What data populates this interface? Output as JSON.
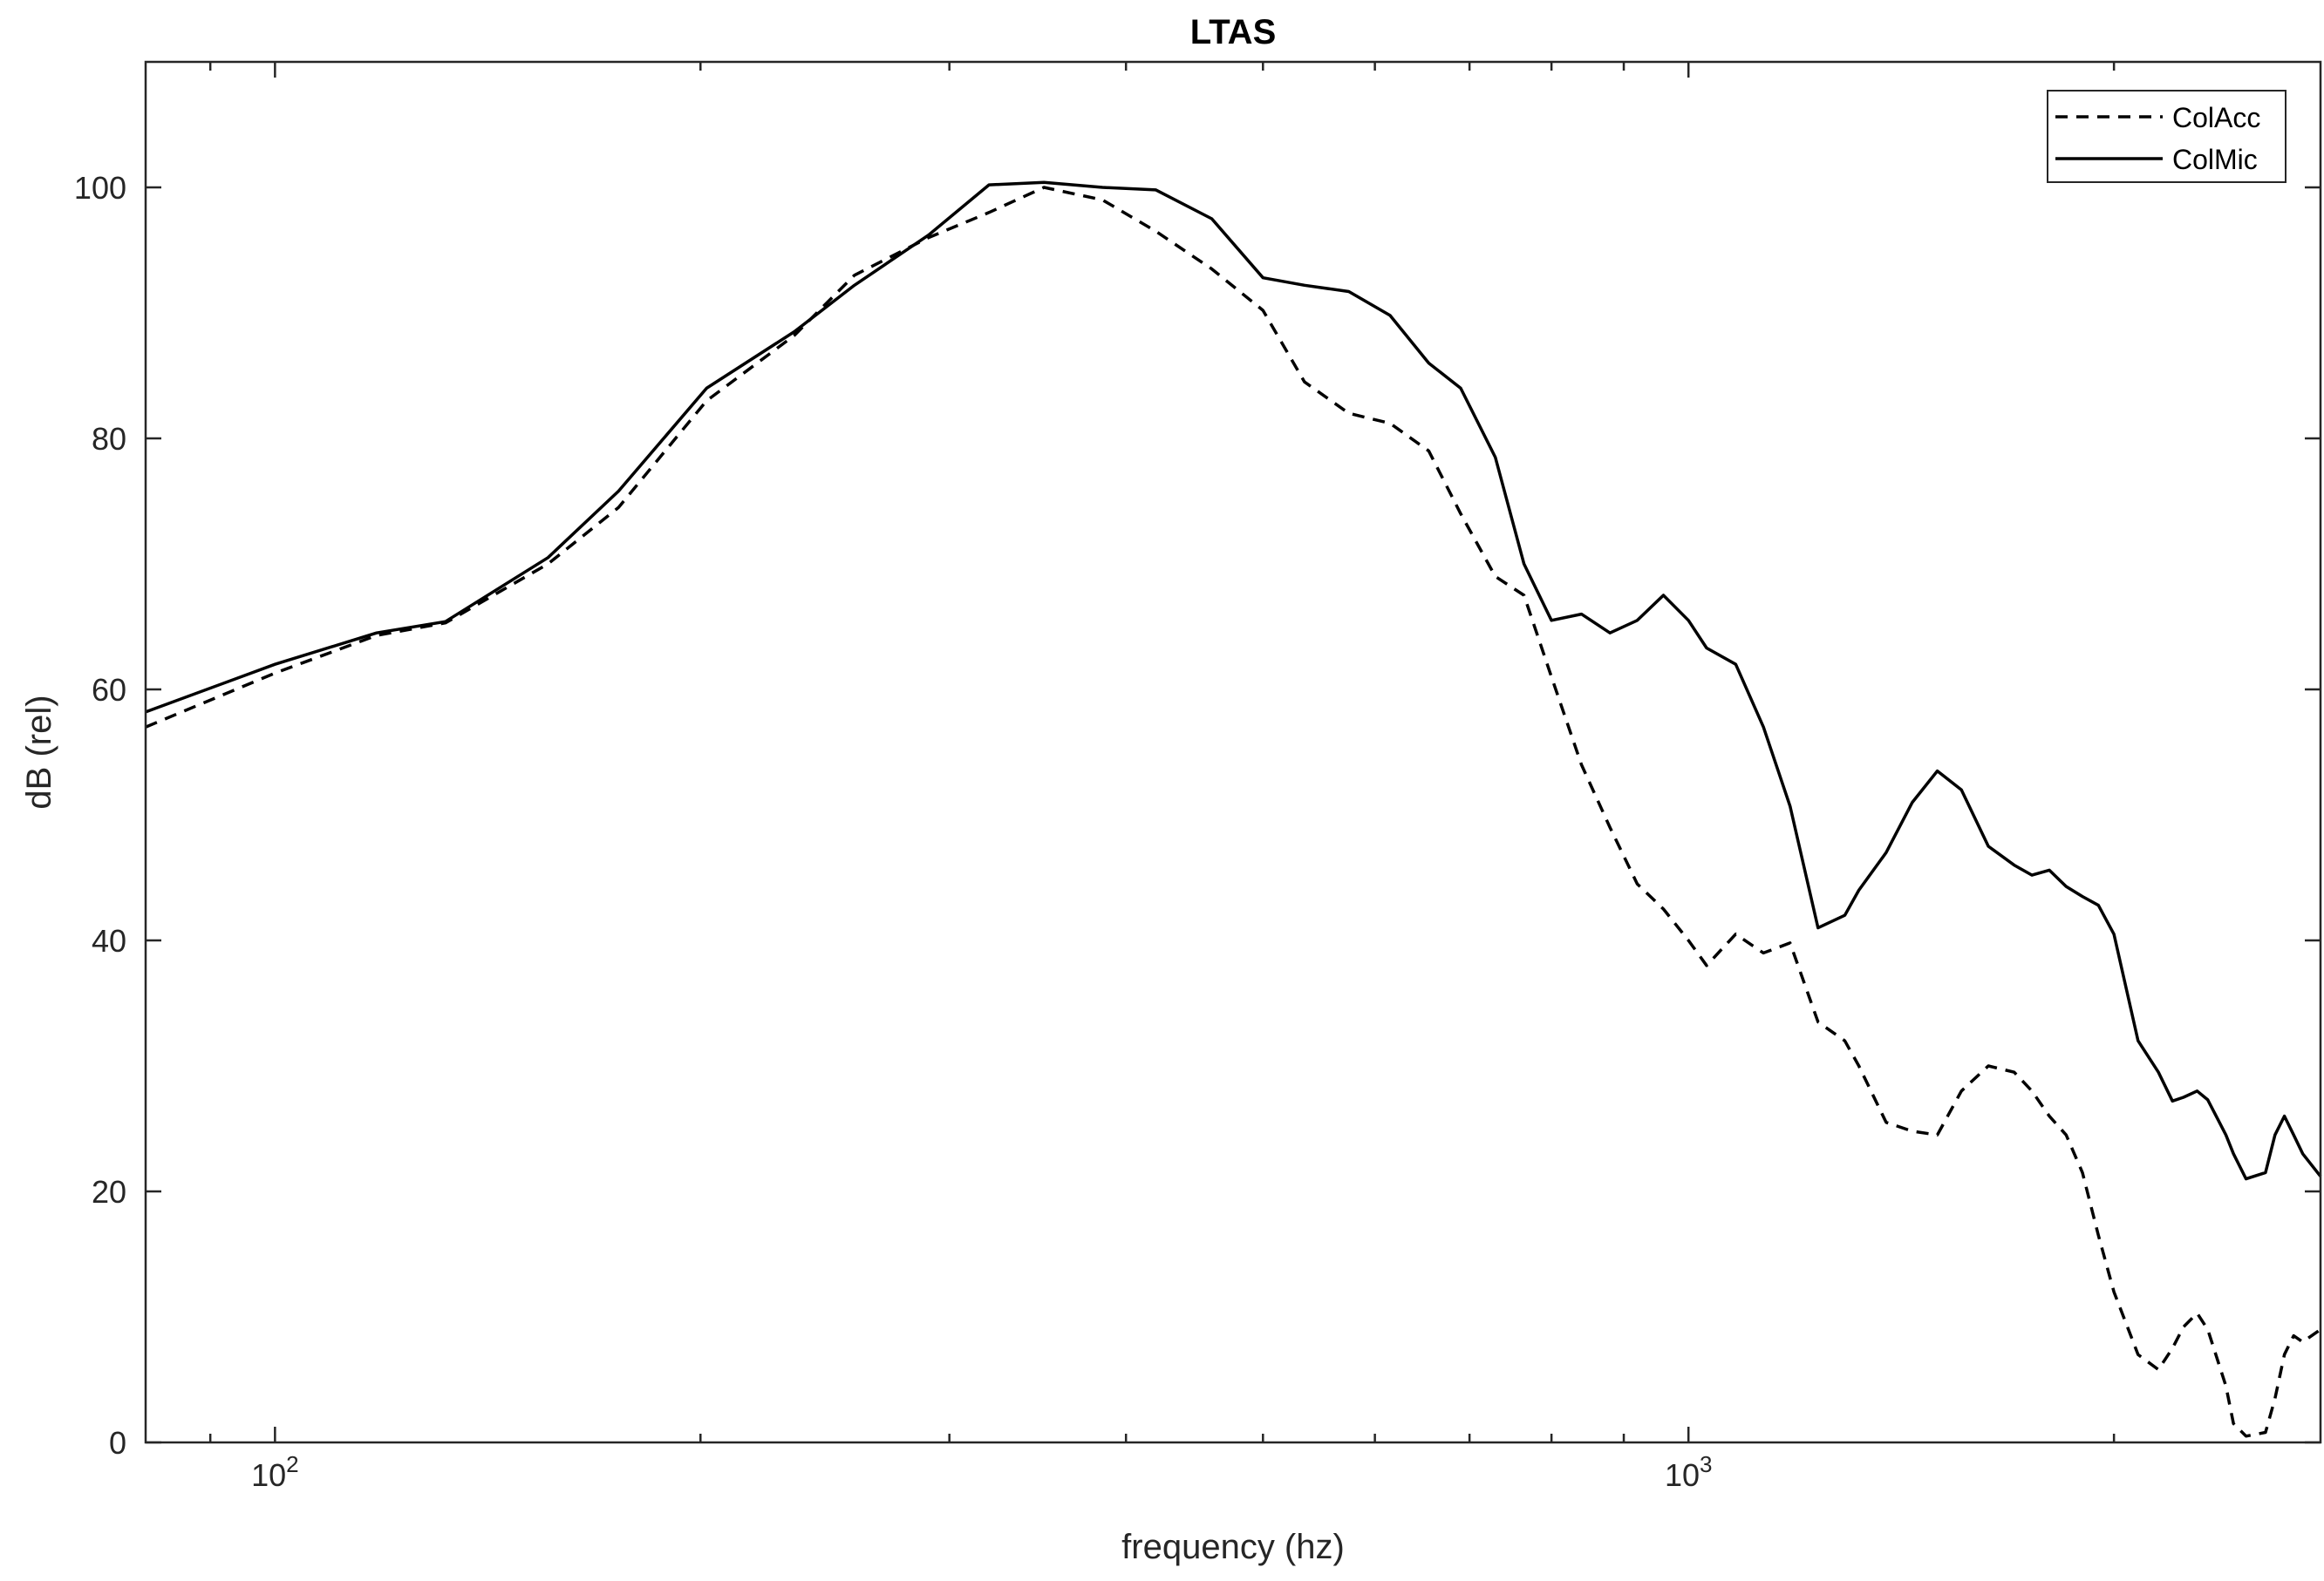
{
  "chart_data": {
    "type": "line",
    "title": "LTAS",
    "xlabel": "frequency (hz)",
    "ylabel": "dB (rel)",
    "xscale": "log",
    "xlim": [
      81,
      2800
    ],
    "ylim": [
      0,
      110
    ],
    "xticks": [
      {
        "value": 100,
        "base": "10",
        "exp": "2"
      },
      {
        "value": 1000,
        "base": "10",
        "exp": "3"
      }
    ],
    "yticks": [
      0,
      20,
      40,
      60,
      80,
      100
    ],
    "grid": false,
    "legend": "top-right",
    "series": [
      {
        "name": "ColAcc",
        "style": "dashed",
        "color": "#000000",
        "x": [
          81,
          100,
          118,
          132,
          156,
          175,
          202,
          233,
          257,
          290,
          320,
          350,
          385,
          420,
          460,
          500,
          535,
          575,
          615,
          655,
          690,
          730,
          765,
          800,
          840,
          880,
          920,
          960,
          1000,
          1030,
          1080,
          1130,
          1180,
          1235,
          1290,
          1320,
          1380,
          1440,
          1500,
          1560,
          1630,
          1700,
          1750,
          1800,
          1850,
          1900,
          1950,
          2000,
          2080,
          2150,
          2200,
          2240,
          2290,
          2330,
          2400,
          2430,
          2480,
          2560,
          2600,
          2640,
          2680,
          2720,
          2800
        ],
        "y": [
          57,
          61.3,
          64.3,
          65.3,
          70,
          74.5,
          83,
          88.2,
          93,
          96,
          98,
          100,
          99,
          96.5,
          93.5,
          90.2,
          84.5,
          82,
          81.2,
          79,
          74,
          69,
          67.5,
          61,
          54,
          49,
          44.5,
          42.5,
          40,
          38,
          40.5,
          39,
          39.8,
          33.5,
          32,
          30,
          25.5,
          24.8,
          24.5,
          28,
          30,
          29.5,
          28,
          26,
          24.5,
          21.5,
          16.5,
          12,
          7,
          5.8,
          7.5,
          9.2,
          10.3,
          9,
          4.5,
          1.5,
          0.5,
          0.8,
          3.5,
          7,
          8.5,
          8,
          9
        ]
      },
      {
        "name": "ColMic",
        "style": "solid",
        "color": "#000000",
        "x": [
          81,
          100,
          118,
          132,
          156,
          175,
          202,
          233,
          257,
          290,
          320,
          350,
          385,
          420,
          460,
          500,
          535,
          575,
          615,
          655,
          690,
          730,
          765,
          800,
          840,
          880,
          920,
          960,
          1000,
          1030,
          1080,
          1130,
          1180,
          1235,
          1290,
          1320,
          1380,
          1440,
          1500,
          1560,
          1630,
          1700,
          1750,
          1800,
          1850,
          1900,
          1950,
          2000,
          2080,
          2150,
          2200,
          2240,
          2290,
          2330,
          2400,
          2430,
          2480,
          2560,
          2600,
          2640,
          2680,
          2720,
          2800
        ],
        "y": [
          58.2,
          62,
          64.5,
          65.4,
          70.5,
          75.8,
          84,
          88.5,
          92.2,
          96.2,
          100.2,
          100.4,
          100,
          99.8,
          97.5,
          92.8,
          92.2,
          91.7,
          89.8,
          86,
          84,
          78.5,
          70,
          65.5,
          66,
          64.5,
          65.5,
          67.5,
          65.5,
          63.3,
          62,
          57,
          50.7,
          41,
          42,
          44,
          47,
          51,
          53.5,
          52,
          47.5,
          46,
          45.2,
          45.6,
          44.3,
          43.5,
          42.8,
          40.5,
          32,
          29.5,
          27.2,
          27.5,
          28,
          27.3,
          24.5,
          23,
          21,
          21.5,
          24.5,
          26,
          24.5,
          23,
          21.2
        ]
      }
    ]
  }
}
